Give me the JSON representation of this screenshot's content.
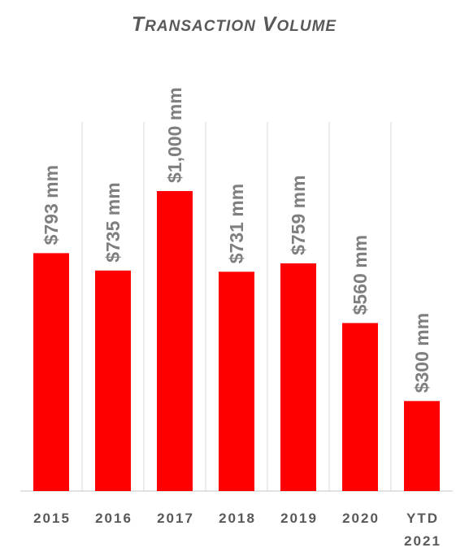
{
  "chart_data": {
    "type": "bar",
    "title": "Transaction Volume",
    "categories": [
      "2015",
      "2016",
      "2017",
      "2018",
      "2019",
      "2020",
      "YTD 2021"
    ],
    "values": [
      793,
      735,
      1000,
      731,
      759,
      560,
      300
    ],
    "data_labels": [
      "$793 mm",
      "$735 mm",
      "$1,000 mm",
      "$731 mm",
      "$759 mm",
      "$560 mm",
      "$300 mm"
    ],
    "xlabel": "",
    "ylabel": "",
    "ylim": [
      0,
      1250
    ],
    "grid": false,
    "legend": "none",
    "bar_color": "#ff0000",
    "separator_color": "#d9d9d9"
  }
}
